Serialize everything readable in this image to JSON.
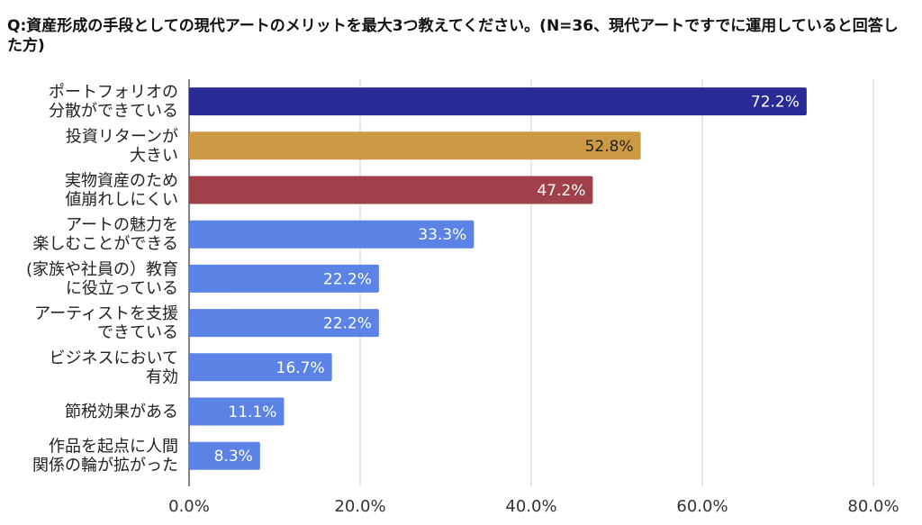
{
  "chart_data": {
    "type": "bar",
    "orientation": "horizontal",
    "title": "Q:資産形成の手段としての現代アートのメリットを最大3つ教えてください。(N=36、現代アートですでに運用していると回答した方)",
    "categories": [
      [
        "ポートフォリオの",
        "分散ができている"
      ],
      [
        "投資リターンが",
        "大きい"
      ],
      [
        "実物資産のため",
        "値崩れしにくい"
      ],
      [
        "アートの魅力を",
        "楽しむことができる"
      ],
      [
        "(家族や社員の）教育",
        "に役立っている"
      ],
      [
        "アーティストを支援",
        "できている"
      ],
      [
        "ビジネスにおいて",
        "有効"
      ],
      [
        "節税効果がある"
      ],
      [
        "作品を起点に人間",
        "関係の輪が拡がった"
      ]
    ],
    "values": [
      72.2,
      52.8,
      47.2,
      33.3,
      22.2,
      22.2,
      16.7,
      11.1,
      8.3
    ],
    "data_labels": [
      "72.2%",
      "52.8%",
      "47.2%",
      "33.3%",
      "22.2%",
      "22.2%",
      "16.7%",
      "11.1%",
      "8.3%"
    ],
    "bar_colors": [
      "#2a2a96",
      "#cc9944",
      "#a0404a",
      "#5b83e6",
      "#5b83e6",
      "#5b83e6",
      "#5b83e6",
      "#5b83e6",
      "#5b83e6"
    ],
    "label_colors": [
      "#ffffff",
      "#222222",
      "#ffffff",
      "#ffffff",
      "#ffffff",
      "#ffffff",
      "#ffffff",
      "#ffffff",
      "#ffffff"
    ],
    "xlim": [
      0,
      80
    ],
    "x_ticks": [
      0,
      20,
      40,
      60,
      80
    ],
    "x_tick_labels": [
      "0.0%",
      "20.0%",
      "40.0%",
      "60.0%",
      "80.0%"
    ],
    "grid": true,
    "legend": "none"
  }
}
